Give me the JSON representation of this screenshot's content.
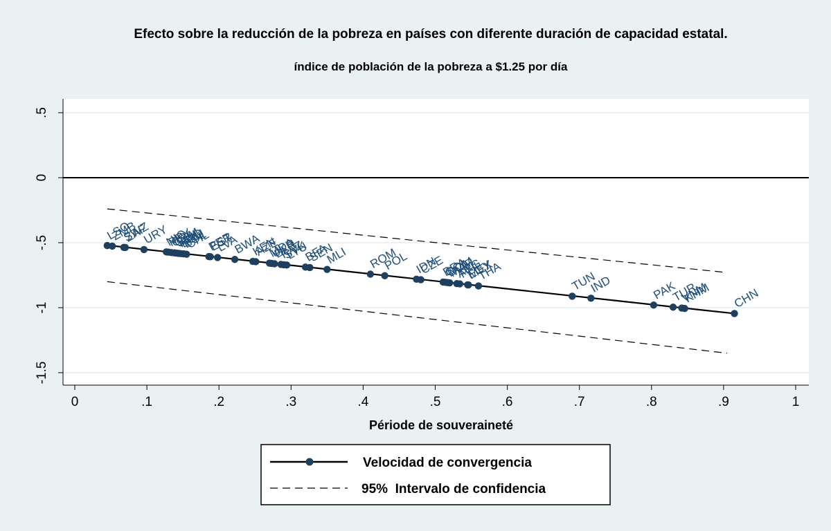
{
  "chart_data": {
    "type": "scatter",
    "title": "Efecto sobre la reducción de la pobreza en países con diferente duración de capacidad estatal.",
    "subtitle": "índice de población de la pobreza a $1.25 por día",
    "xlabel": "Période de souveraineté",
    "ylabel": "",
    "xlim": [
      0,
      1
    ],
    "ylim": [
      -1.5,
      0.5
    ],
    "x_ticks": [
      {
        "value": 0,
        "label": "0"
      },
      {
        "value": 0.1,
        "label": ".1"
      },
      {
        "value": 0.2,
        "label": ".2"
      },
      {
        "value": 0.3,
        "label": ".3"
      },
      {
        "value": 0.4,
        "label": ".4"
      },
      {
        "value": 0.5,
        "label": ".5"
      },
      {
        "value": 0.6,
        "label": ".6"
      },
      {
        "value": 0.7,
        "label": ".7"
      },
      {
        "value": 0.8,
        "label": ".8"
      },
      {
        "value": 0.9,
        "label": ".9"
      },
      {
        "value": 1,
        "label": "1"
      }
    ],
    "y_ticks": [
      {
        "value": 0.5,
        "label": ".5"
      },
      {
        "value": 0,
        "label": "0"
      },
      {
        "value": -0.5,
        "label": "-.5"
      },
      {
        "value": -1,
        "label": "-1"
      },
      {
        "value": -1.5,
        "label": "-1.5"
      }
    ],
    "grid": true,
    "legend_position": "bottom",
    "line_fit": {
      "x": [
        0.045,
        0.915
      ],
      "y": [
        -0.52,
        -1.045
      ]
    },
    "ci_upper": {
      "x": [
        0.045,
        0.905
      ],
      "y": [
        -0.24,
        -0.73
      ]
    },
    "ci_lower": {
      "x": [
        0.045,
        0.905
      ],
      "y": [
        -0.8,
        -1.35
      ]
    },
    "reference_line_y": 0,
    "series": [
      {
        "name": "Velocidad de convergencia",
        "style": "solid-with-markers",
        "color": "#1f3f5f"
      },
      {
        "name": "95%  Intervalo de confidencia",
        "style": "dashed",
        "color": "#000000"
      }
    ],
    "points": [
      {
        "label": "LSO",
        "x": 0.045,
        "y": -0.522
      },
      {
        "label": "ZMB",
        "x": 0.052,
        "y": -0.526
      },
      {
        "label": "SWZ",
        "x": 0.068,
        "y": -0.536
      },
      {
        "label": "ZAF",
        "x": 0.07,
        "y": -0.537
      },
      {
        "label": "URY",
        "x": 0.096,
        "y": -0.553
      },
      {
        "label": "NIC",
        "x": 0.127,
        "y": -0.571
      },
      {
        "label": "PRY",
        "x": 0.13,
        "y": -0.573
      },
      {
        "label": "CRI",
        "x": 0.134,
        "y": -0.576
      },
      {
        "label": "GTM",
        "x": 0.138,
        "y": -0.578
      },
      {
        "label": "SLV",
        "x": 0.141,
        "y": -0.58
      },
      {
        "label": "HND",
        "x": 0.144,
        "y": -0.582
      },
      {
        "label": "ECU",
        "x": 0.147,
        "y": -0.584
      },
      {
        "label": "BOL",
        "x": 0.151,
        "y": -0.586
      },
      {
        "label": "CHL",
        "x": 0.155,
        "y": -0.589
      },
      {
        "label": "PER",
        "x": 0.186,
        "y": -0.607
      },
      {
        "label": "EST",
        "x": 0.188,
        "y": -0.608
      },
      {
        "label": "LVA",
        "x": 0.198,
        "y": -0.614
      },
      {
        "label": "BWA",
        "x": 0.222,
        "y": -0.629
      },
      {
        "label": "KEN",
        "x": 0.247,
        "y": -0.644
      },
      {
        "label": "AZE",
        "x": 0.251,
        "y": -0.646
      },
      {
        "label": "MDA",
        "x": 0.27,
        "y": -0.657
      },
      {
        "label": "UKR",
        "x": 0.273,
        "y": -0.659
      },
      {
        "label": "BLR",
        "x": 0.277,
        "y": -0.662
      },
      {
        "label": "KAZ",
        "x": 0.286,
        "y": -0.667
      },
      {
        "label": "SVK",
        "x": 0.29,
        "y": -0.67
      },
      {
        "label": "LTU",
        "x": 0.294,
        "y": -0.672
      },
      {
        "label": "BFA",
        "x": 0.32,
        "y": -0.688
      },
      {
        "label": "SEN",
        "x": 0.326,
        "y": -0.691
      },
      {
        "label": "MLI",
        "x": 0.35,
        "y": -0.706
      },
      {
        "label": "ROM",
        "x": 0.41,
        "y": -0.742
      },
      {
        "label": "POL",
        "x": 0.43,
        "y": -0.754
      },
      {
        "label": "IDN",
        "x": 0.474,
        "y": -0.781
      },
      {
        "label": "CZE",
        "x": 0.48,
        "y": -0.785
      },
      {
        "label": "BRA",
        "x": 0.511,
        "y": -0.803
      },
      {
        "label": "COL",
        "x": 0.514,
        "y": -0.805
      },
      {
        "label": "DOM",
        "x": 0.517,
        "y": -0.807
      },
      {
        "label": "MAR",
        "x": 0.52,
        "y": -0.809
      },
      {
        "label": "ARG",
        "x": 0.53,
        "y": -0.815
      },
      {
        "label": "PHL",
        "x": 0.534,
        "y": -0.817
      },
      {
        "label": "EGY",
        "x": 0.545,
        "y": -0.824
      },
      {
        "label": "MEX",
        "x": 0.546,
        "y": -0.825
      },
      {
        "label": "THA",
        "x": 0.56,
        "y": -0.833
      },
      {
        "label": "TUN",
        "x": 0.69,
        "y": -0.912
      },
      {
        "label": "IND",
        "x": 0.716,
        "y": -0.927
      },
      {
        "label": "PAK",
        "x": 0.803,
        "y": -0.98
      },
      {
        "label": "TUR",
        "x": 0.83,
        "y": -0.996
      },
      {
        "label": "VNM",
        "x": 0.842,
        "y": -1.003
      },
      {
        "label": "KHM",
        "x": 0.846,
        "y": -1.006
      },
      {
        "label": "CHN",
        "x": 0.915,
        "y": -1.045
      }
    ]
  }
}
